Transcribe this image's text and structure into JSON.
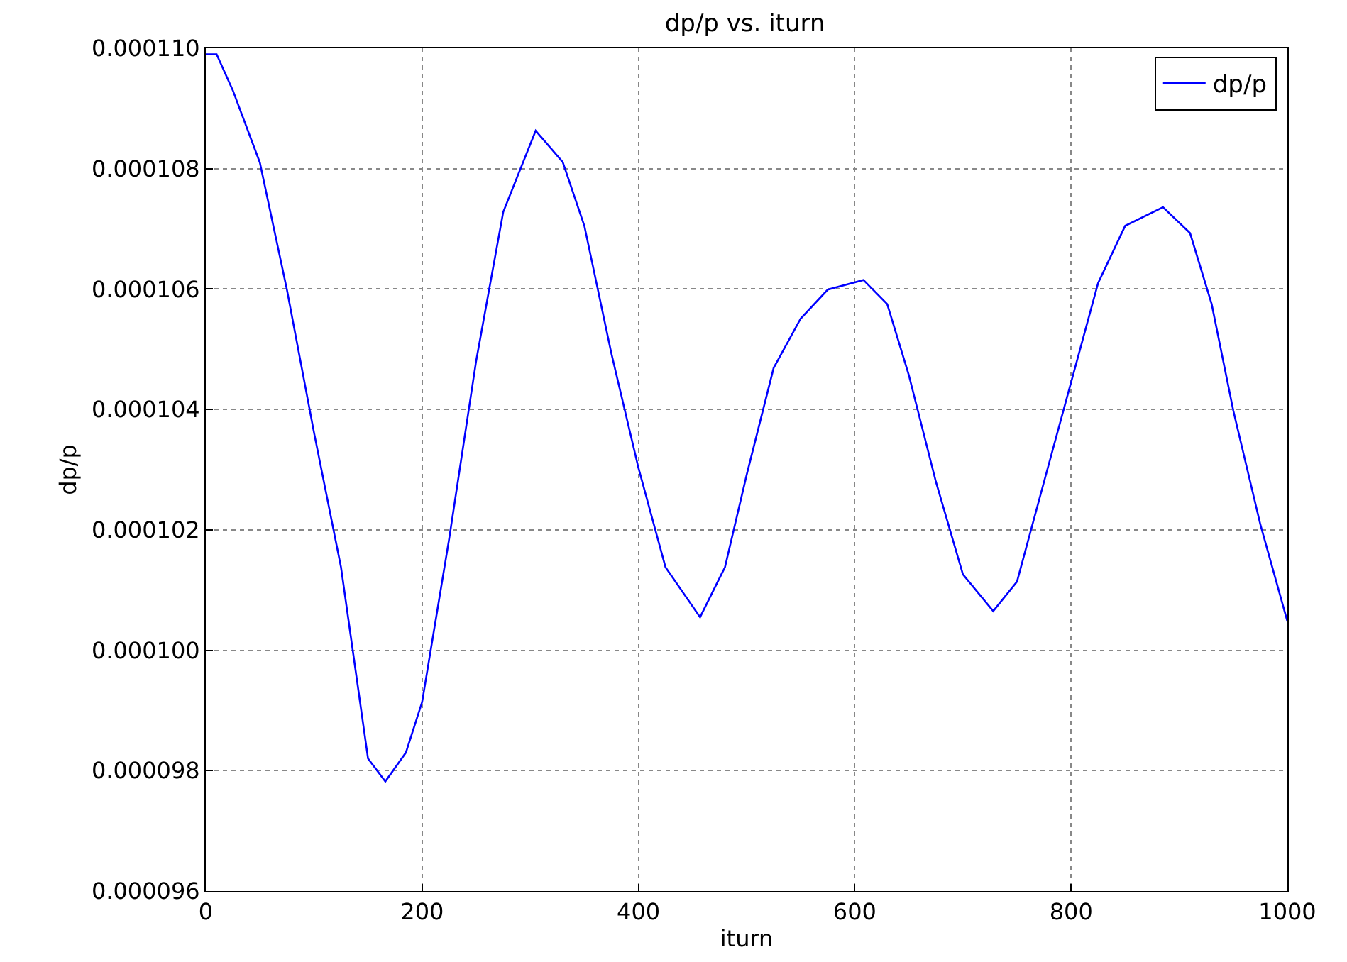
{
  "chart_data": {
    "type": "line",
    "title": "dp/p vs. iturn",
    "xlabel": "iturn",
    "ylabel": "dp/p",
    "xlim": [
      0,
      1000
    ],
    "xticks": [
      0,
      200,
      400,
      600,
      800,
      1000
    ],
    "ylim": [
      9.6e-05,
      0.00011
    ],
    "yticks": [
      {
        "value": 9.6e-05,
        "label": "0.000096"
      },
      {
        "value": 9.8e-05,
        "label": "0.000098"
      },
      {
        "value": 0.0001,
        "label": "0.000100"
      },
      {
        "value": 0.000102,
        "label": "0.000102"
      },
      {
        "value": 0.000104,
        "label": "0.000104"
      },
      {
        "value": 0.000106,
        "label": "0.000106"
      },
      {
        "value": 0.000108,
        "label": "0.000108"
      },
      {
        "value": 0.00011,
        "label": "0.000110"
      }
    ],
    "grid": true,
    "legend": "top right",
    "marker": "none",
    "line_style": "solid",
    "series": [
      {
        "name": "dp/p",
        "color": "#0000ff",
        "x": [
          0,
          10,
          25,
          50,
          75,
          100,
          125,
          150,
          166,
          185,
          200,
          225,
          250,
          275,
          305,
          330,
          350,
          375,
          400,
          425,
          457,
          480,
          500,
          525,
          550,
          575,
          608,
          630,
          650,
          675,
          700,
          728,
          750,
          775,
          800,
          825,
          850,
          885,
          910,
          930,
          950,
          975,
          1000
        ],
        "values": [
          0.0001099,
          0.0001099,
          0.0001093,
          0.0001081,
          0.00010599,
          0.00010362,
          0.00010138,
          9.82e-05,
          9.782e-05,
          9.83e-05,
          9.914e-05,
          0.00010185,
          0.00010481,
          0.00010728,
          0.00010863,
          0.00010811,
          0.00010705,
          0.00010493,
          0.00010303,
          0.00010138,
          0.00010055,
          0.00010138,
          0.00010291,
          0.00010469,
          0.00010551,
          0.00010599,
          0.00010615,
          0.00010575,
          0.00010457,
          0.0001028,
          0.00010126,
          0.00010065,
          0.00010114,
          0.0001028,
          0.00010445,
          0.0001061,
          0.00010705,
          0.00010736,
          0.00010693,
          0.00010575,
          0.00010398,
          0.00010209,
          0.00010048
        ]
      }
    ]
  }
}
